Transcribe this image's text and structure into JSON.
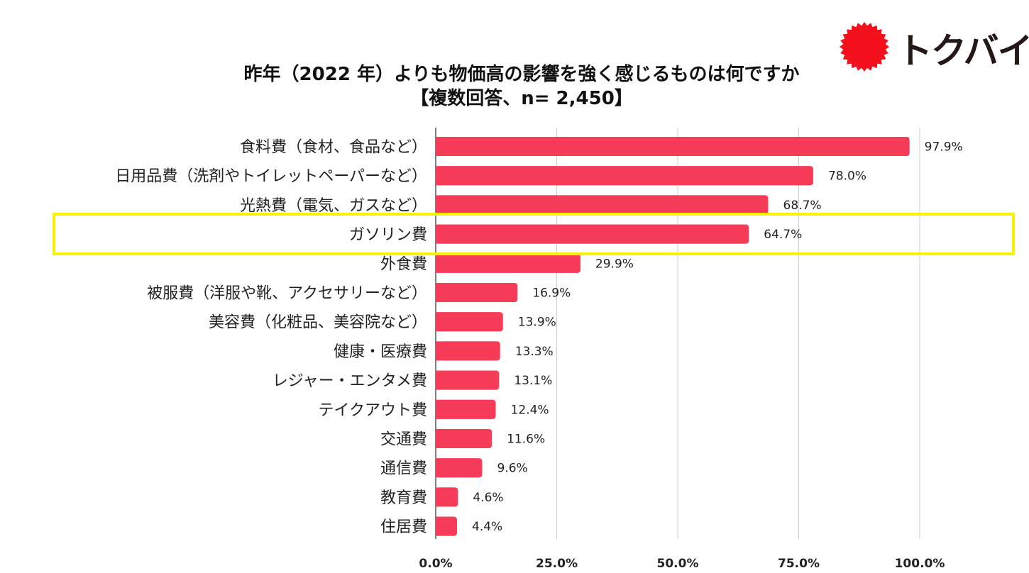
{
  "logo": {
    "text": "トクバイ",
    "color": "#f5101e"
  },
  "chart_data": {
    "type": "bar",
    "orientation": "horizontal",
    "title": "昨年（2022 年）よりも物価高の影響を強く感じるものは何ですか",
    "subtitle": "【複数回答、n= 2,450】",
    "categories": [
      "食料費（食材、食品など）",
      "日用品費（洗剤やトイレットペーパーなど）",
      "光熱費（電気、ガスなど）",
      "ガソリン費",
      "外食費",
      "被服費（洋服や靴、アクセサリーなど）",
      "美容費（化粧品、美容院など）",
      "健康・医療費",
      "レジャー・エンタメ費",
      "テイクアウト費",
      "交通費",
      "通信費",
      "教育費",
      "住居費"
    ],
    "values": [
      97.9,
      78.0,
      68.7,
      64.7,
      29.9,
      16.9,
      13.9,
      13.3,
      13.1,
      12.4,
      11.6,
      9.6,
      4.6,
      4.4
    ],
    "value_labels": [
      "97.9%",
      "78.0%",
      "68.7%",
      "64.7%",
      "29.9%",
      "16.9%",
      "13.9%",
      "13.3%",
      "13.1%",
      "12.4%",
      "11.6%",
      "9.6%",
      "4.6%",
      "4.4%"
    ],
    "xlim": [
      0,
      100
    ],
    "xticks": [
      0,
      25,
      50,
      75,
      100
    ],
    "xtick_labels": [
      "0.0%",
      "25.0%",
      "50.0%",
      "75.0%",
      "100.0%"
    ],
    "highlighted_category": "ガソリン費",
    "bar_color": "#f73c5a",
    "highlight_color": "#f7f200",
    "grid": true
  }
}
